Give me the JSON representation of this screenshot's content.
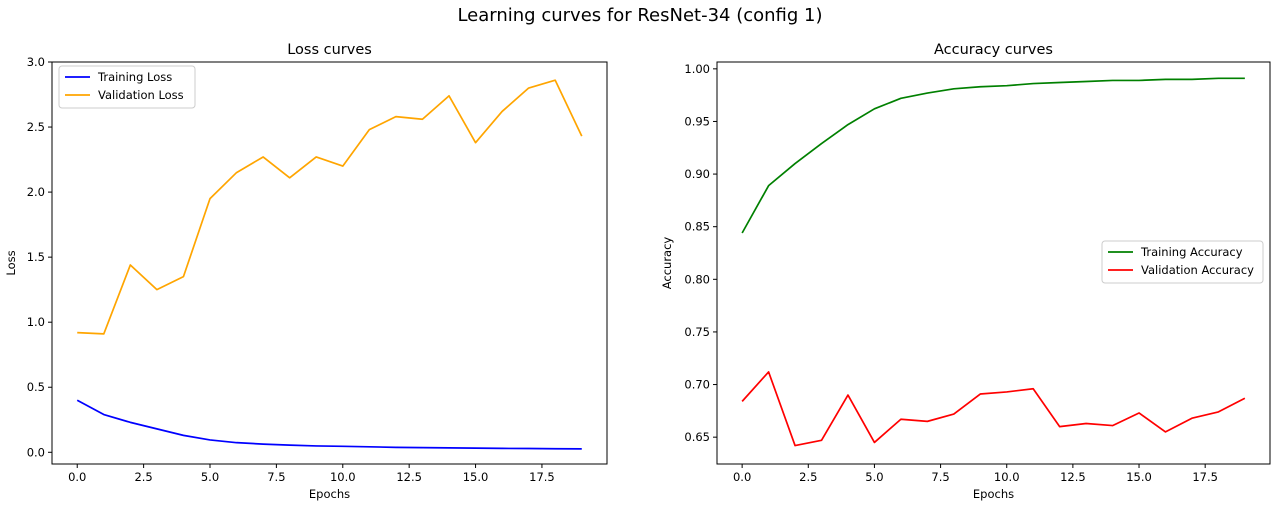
{
  "figure": {
    "suptitle": "Learning curves for ResNet-34 (config 1)"
  },
  "chart_data": [
    {
      "type": "line",
      "title": "Loss curves",
      "xlabel": "Epochs",
      "ylabel": "Loss",
      "xlim": [
        -0.95,
        19.95
      ],
      "ylim": [
        -0.09,
        3.0
      ],
      "xticks": [
        0.0,
        2.5,
        5.0,
        7.5,
        10.0,
        12.5,
        15.0,
        17.5
      ],
      "xtick_labels": [
        "0.0",
        "2.5",
        "5.0",
        "7.5",
        "10.0",
        "12.5",
        "15.0",
        "17.5"
      ],
      "yticks": [
        0.0,
        0.5,
        1.0,
        1.5,
        2.0,
        2.5,
        3.0
      ],
      "ytick_labels": [
        "0.0",
        "0.5",
        "1.0",
        "1.5",
        "2.0",
        "2.5",
        "3.0"
      ],
      "grid": false,
      "legend_position": "upper-left",
      "x": [
        0,
        1,
        2,
        3,
        4,
        5,
        6,
        7,
        8,
        9,
        10,
        11,
        12,
        13,
        14,
        15,
        16,
        17,
        18,
        19
      ],
      "series": [
        {
          "name": "Training Loss",
          "color": "#0000ff",
          "values": [
            0.4,
            0.29,
            0.23,
            0.18,
            0.13,
            0.095,
            0.074,
            0.063,
            0.055,
            0.049,
            0.046,
            0.042,
            0.038,
            0.036,
            0.034,
            0.032,
            0.03,
            0.029,
            0.027,
            0.026
          ]
        },
        {
          "name": "Validation Loss",
          "color": "#ffa500",
          "values": [
            0.92,
            0.91,
            1.44,
            1.25,
            1.35,
            1.95,
            2.15,
            2.27,
            2.11,
            2.27,
            2.2,
            2.48,
            2.58,
            2.56,
            2.74,
            2.38,
            2.62,
            2.8,
            2.86,
            2.43
          ]
        }
      ]
    },
    {
      "type": "line",
      "title": "Accuracy curves",
      "xlabel": "Epochs",
      "ylabel": "Accuracy",
      "xlim": [
        -0.95,
        19.95
      ],
      "ylim": [
        0.6245,
        1.0065
      ],
      "xticks": [
        0.0,
        2.5,
        5.0,
        7.5,
        10.0,
        12.5,
        15.0,
        17.5
      ],
      "xtick_labels": [
        "0.0",
        "2.5",
        "5.0",
        "7.5",
        "10.0",
        "12.5",
        "15.0",
        "17.5"
      ],
      "yticks": [
        0.65,
        0.7,
        0.75,
        0.8,
        0.85,
        0.9,
        0.95,
        1.0
      ],
      "ytick_labels": [
        "0.65",
        "0.70",
        "0.75",
        "0.80",
        "0.85",
        "0.90",
        "0.95",
        "1.00"
      ],
      "grid": false,
      "legend_position": "center-right",
      "x": [
        0,
        1,
        2,
        3,
        4,
        5,
        6,
        7,
        8,
        9,
        10,
        11,
        12,
        13,
        14,
        15,
        16,
        17,
        18,
        19
      ],
      "series": [
        {
          "name": "Training Accuracy",
          "color": "#008000",
          "values": [
            0.844,
            0.889,
            0.91,
            0.929,
            0.947,
            0.962,
            0.972,
            0.977,
            0.981,
            0.983,
            0.984,
            0.986,
            0.987,
            0.988,
            0.989,
            0.989,
            0.99,
            0.99,
            0.991,
            0.991
          ]
        },
        {
          "name": "Validation Accuracy",
          "color": "#ff0000",
          "values": [
            0.684,
            0.712,
            0.642,
            0.647,
            0.69,
            0.645,
            0.667,
            0.665,
            0.672,
            0.691,
            0.693,
            0.696,
            0.66,
            0.663,
            0.661,
            0.673,
            0.655,
            0.668,
            0.674,
            0.687
          ]
        }
      ]
    }
  ]
}
